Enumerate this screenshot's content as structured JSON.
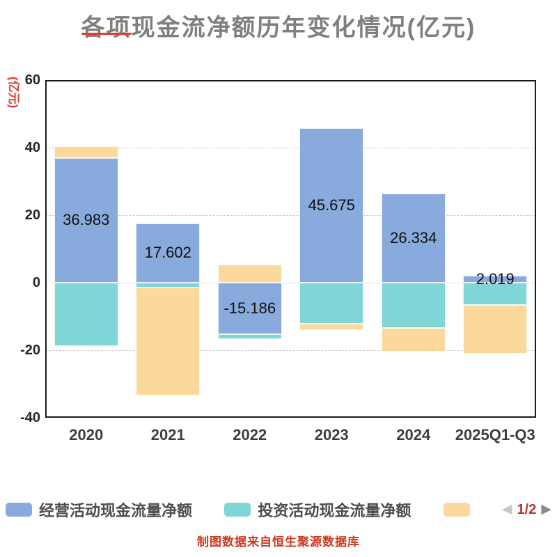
{
  "title": {
    "text": "各项现金流净额历年变化情况(亿元)"
  },
  "axes": {
    "y_title": "(亿元)"
  },
  "caption": {
    "text": "制图数据来自恒生聚源数据库"
  },
  "legend": {
    "items": [
      {
        "label": "经营活动现金流量净额"
      },
      {
        "label": "投资活动现金流量净额"
      },
      {
        "label": ""
      }
    ],
    "pager": {
      "prev_icon": "◀",
      "label": "1/2",
      "next_icon": "▶"
    }
  },
  "colors": {
    "title": "#7f7f7f",
    "red_accent": "#e03b2f",
    "caption": "#cc3a1f",
    "tick_label": "#262626",
    "x_label": "#3d3d3d",
    "legend_label": "#4d4d4d",
    "grid": "#c9c9c9",
    "plot_border": "#1a1a1a",
    "pager_text": "#b03a2e",
    "pager_prev": "#c8c8c8",
    "pager_next": "#8a8a8a"
  },
  "chart_data": {
    "type": "bar",
    "stacked": true,
    "title": "各项现金流净额历年变化情况(亿元)",
    "categories": [
      "2020",
      "2021",
      "2022",
      "2023",
      "2024",
      "2025Q1-Q3"
    ],
    "series": [
      {
        "name": "经营活动现金流量净额",
        "color": "#88aadc",
        "values": [
          36.983,
          17.602,
          -15.186,
          45.675,
          26.334,
          2.019
        ],
        "labels": [
          "36.983",
          "17.602",
          "-15.186",
          "45.675",
          "26.334",
          "2.019"
        ]
      },
      {
        "name": "投资活动现金流量净额",
        "color": "#80d6d6",
        "values": [
          -18.8,
          -1.4,
          -1.6,
          -12.2,
          -13.4,
          -6.6
        ]
      },
      {
        "name": "",
        "color": "#fbd89b",
        "values": [
          3.5,
          -32.0,
          5.4,
          -1.8,
          -7.0,
          -14.4
        ]
      }
    ],
    "ylim": [
      -40,
      60
    ],
    "yticks": [
      60,
      40,
      20,
      0,
      -20,
      -40
    ],
    "y_axis_title": "(亿元)",
    "grid": "dashed-horizontal",
    "legend_position": "bottom"
  }
}
